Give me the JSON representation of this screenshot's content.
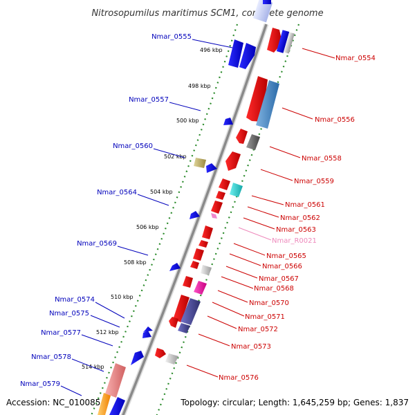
{
  "title": "Nitrosopumilus maritimus SCM1, complete genome",
  "footer": {
    "accession": "Accession: NC_010085",
    "topology": "Topology: circular; Length: 1,645,259 bp; Genes: 1,837"
  },
  "colors": {
    "left_label": "#0000bb",
    "right_label": "#cc0000",
    "rna_label": "#ee88bb",
    "backbone": "#888888",
    "tick_ring": "#2a8a2a"
  },
  "ticks": [
    "496 kbp",
    "498 kbp",
    "500 kbp",
    "502 kbp",
    "504 kbp",
    "506 kbp",
    "508 kbp",
    "510 kbp",
    "512 kbp",
    "514 kbp"
  ],
  "left_labels": [
    "Nmar_0555",
    "Nmar_0557",
    "Nmar_0560",
    "Nmar_0564",
    "Nmar_0569",
    "Nmar_0574",
    "Nmar_0575",
    "Nmar_0577",
    "Nmar_0578",
    "Nmar_0579"
  ],
  "right_labels": [
    "Nmar_0554",
    "Nmar_0556",
    "Nmar_0558",
    "Nmar_0559",
    "Nmar_0561",
    "Nmar_0562",
    "Nmar_0563",
    "Nmar_R0021",
    "Nmar_0565",
    "Nmar_0566",
    "Nmar_0567",
    "Nmar_0568",
    "Nmar_0570",
    "Nmar_0571",
    "Nmar_0572",
    "Nmar_0573",
    "Nmar_0576"
  ]
}
